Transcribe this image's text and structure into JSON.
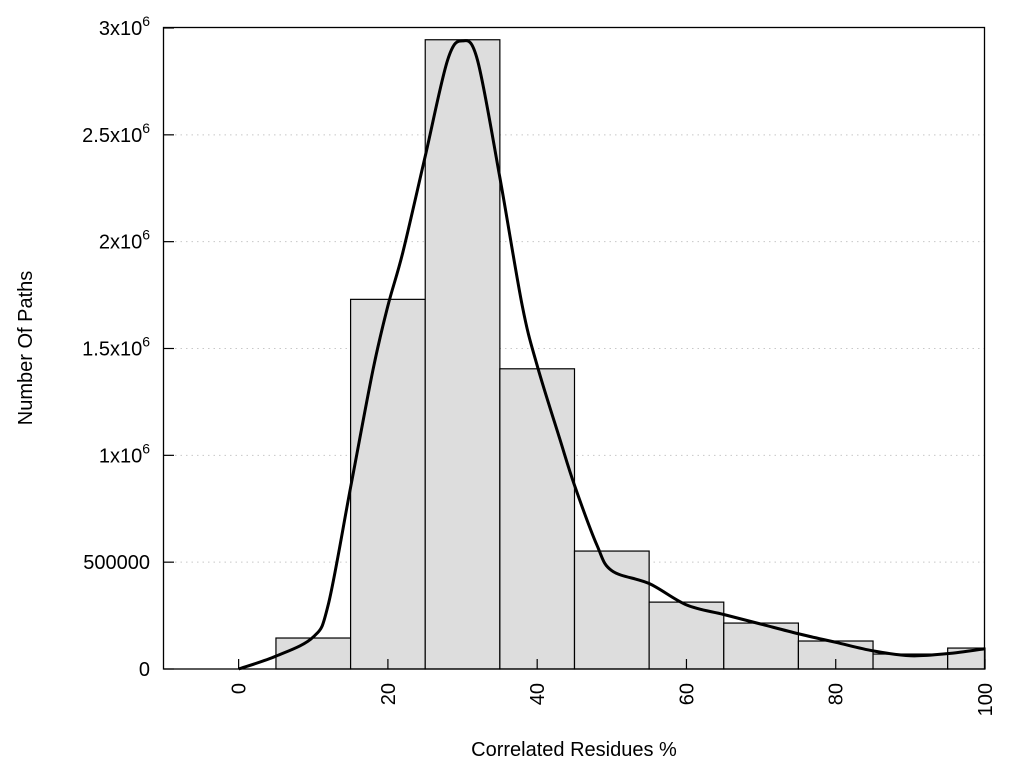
{
  "chart_data": {
    "type": "bar",
    "title": "",
    "xlabel": "Correlated Residues %",
    "ylabel": "Number Of Paths",
    "xlim": [
      -10,
      100
    ],
    "ylim": [
      0,
      3000000
    ],
    "grid": {
      "y": true,
      "x": false,
      "style": "dotted"
    },
    "legend": "none",
    "bar_width": 10,
    "bar_color": "#dddddd",
    "bar_edge_color": "#000000",
    "x_ticks": [
      {
        "value": 0,
        "label": "0"
      },
      {
        "value": 20,
        "label": "20"
      },
      {
        "value": 40,
        "label": "40"
      },
      {
        "value": 60,
        "label": "60"
      },
      {
        "value": 80,
        "label": "80"
      },
      {
        "value": 100,
        "label": "100"
      }
    ],
    "y_ticks": [
      {
        "value": 0,
        "label": "0",
        "exp": ""
      },
      {
        "value": 500000,
        "label": "500000",
        "exp": ""
      },
      {
        "value": 1000000,
        "label": "1x10",
        "exp": "6"
      },
      {
        "value": 1500000,
        "label": "1.5x10",
        "exp": "6"
      },
      {
        "value": 2000000,
        "label": "2x10",
        "exp": "6"
      },
      {
        "value": 2500000,
        "label": "2.5x10",
        "exp": "6"
      },
      {
        "value": 3000000,
        "label": "3x10",
        "exp": "6"
      }
    ],
    "bars": {
      "x": [
        10,
        20,
        30,
        40,
        50,
        60,
        70,
        80,
        90,
        100
      ],
      "values": [
        145000,
        1730000,
        2945000,
        1405000,
        552000,
        313000,
        215000,
        131000,
        70000,
        98000
      ]
    },
    "curve": {
      "type": "line",
      "color": "#000000",
      "x": [
        0,
        5,
        10,
        12,
        15,
        18,
        20,
        22,
        25,
        28,
        30,
        32,
        35,
        38,
        40,
        43,
        45,
        48,
        50,
        55,
        60,
        65,
        70,
        75,
        80,
        85,
        90,
        95,
        100
      ],
      "y": [
        0,
        60000,
        150000,
        300000,
        850000,
        1400000,
        1700000,
        1950000,
        2400000,
        2850000,
        2940000,
        2850000,
        2300000,
        1700000,
        1420000,
        1080000,
        860000,
        580000,
        460000,
        400000,
        300000,
        255000,
        210000,
        165000,
        125000,
        85000,
        62000,
        72000,
        95000
      ]
    }
  }
}
